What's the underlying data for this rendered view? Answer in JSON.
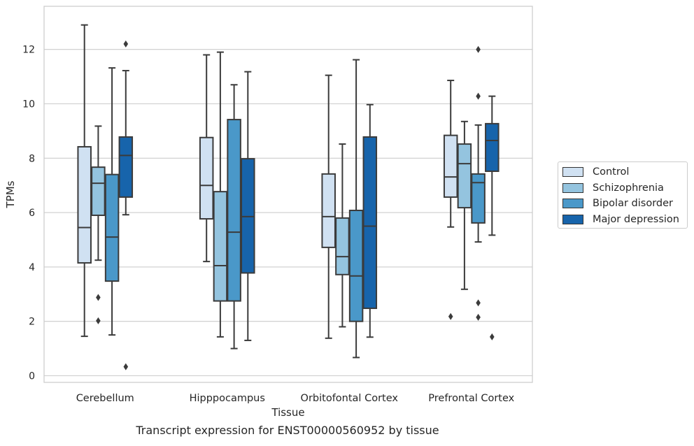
{
  "figure_caption": "Transcript expression for ENST00000560952 by tissue",
  "legend": {
    "items": [
      {
        "label": "Control",
        "color": "#d0e1f2"
      },
      {
        "label": "Schizophrenia",
        "color": "#94c4df"
      },
      {
        "label": "Bipolar disorder",
        "color": "#4a98c9"
      },
      {
        "label": "Major depression",
        "color": "#1764ab"
      }
    ]
  },
  "chart_data": {
    "type": "box",
    "xlabel": "Tissue",
    "ylabel": "TPMs",
    "ylim": [
      -0.25,
      13.6
    ],
    "yticks": [
      0,
      2,
      4,
      6,
      8,
      10,
      12
    ],
    "grid": "horizontal",
    "legend_position": "right",
    "categories": [
      "Cerebellum",
      "Hipppocampus",
      "Orbitofontal Cortex",
      "Prefrontal Cortex"
    ],
    "series": [
      {
        "name": "Control",
        "color": "#d0e1f2",
        "boxes": [
          {
            "whislo": 1.45,
            "q1": 4.15,
            "med": 5.45,
            "q3": 8.42,
            "whishi": 12.9,
            "fliers": []
          },
          {
            "whislo": 4.2,
            "q1": 5.77,
            "med": 7.0,
            "q3": 8.76,
            "whishi": 11.8,
            "fliers": []
          },
          {
            "whislo": 1.38,
            "q1": 4.72,
            "med": 5.85,
            "q3": 7.42,
            "whishi": 11.05,
            "fliers": []
          },
          {
            "whislo": 5.47,
            "q1": 6.57,
            "med": 7.31,
            "q3": 8.84,
            "whishi": 10.86,
            "fliers": [
              2.18
            ]
          }
        ]
      },
      {
        "name": "Schizophrenia",
        "color": "#94c4df",
        "boxes": [
          {
            "whislo": 4.25,
            "q1": 5.9,
            "med": 7.08,
            "q3": 7.67,
            "whishi": 9.18,
            "fliers": [
              2.88,
              2.02
            ]
          },
          {
            "whislo": 1.43,
            "q1": 2.75,
            "med": 4.05,
            "q3": 6.77,
            "whishi": 11.9,
            "fliers": []
          },
          {
            "whislo": 1.8,
            "q1": 3.72,
            "med": 4.38,
            "q3": 5.8,
            "whishi": 8.52,
            "fliers": []
          },
          {
            "whislo": 3.18,
            "q1": 6.18,
            "med": 7.8,
            "q3": 8.52,
            "whishi": 9.35,
            "fliers": []
          }
        ]
      },
      {
        "name": "Bipolar disorder",
        "color": "#4a98c9",
        "boxes": [
          {
            "whislo": 1.5,
            "q1": 3.48,
            "med": 5.1,
            "q3": 7.4,
            "whishi": 11.32,
            "fliers": []
          },
          {
            "whislo": 1.0,
            "q1": 2.75,
            "med": 5.28,
            "q3": 9.42,
            "whishi": 10.7,
            "fliers": []
          },
          {
            "whislo": 0.67,
            "q1": 2.0,
            "med": 3.67,
            "q3": 6.08,
            "whishi": 11.62,
            "fliers": []
          },
          {
            "whislo": 4.92,
            "q1": 5.62,
            "med": 7.1,
            "q3": 7.42,
            "whishi": 9.22,
            "fliers": [
              12.0,
              10.28,
              2.68,
              2.15
            ]
          }
        ]
      },
      {
        "name": "Major depression",
        "color": "#1764ab",
        "boxes": [
          {
            "whislo": 5.92,
            "q1": 6.57,
            "med": 8.1,
            "q3": 8.78,
            "whishi": 11.22,
            "fliers": [
              12.2,
              0.33
            ]
          },
          {
            "whislo": 1.3,
            "q1": 3.78,
            "med": 5.85,
            "q3": 7.98,
            "whishi": 11.18,
            "fliers": []
          },
          {
            "whislo": 1.42,
            "q1": 2.48,
            "med": 5.5,
            "q3": 8.78,
            "whishi": 9.97,
            "fliers": []
          },
          {
            "whislo": 5.17,
            "q1": 7.52,
            "med": 8.65,
            "q3": 9.27,
            "whishi": 10.28,
            "fliers": [
              1.43
            ]
          }
        ]
      }
    ]
  }
}
